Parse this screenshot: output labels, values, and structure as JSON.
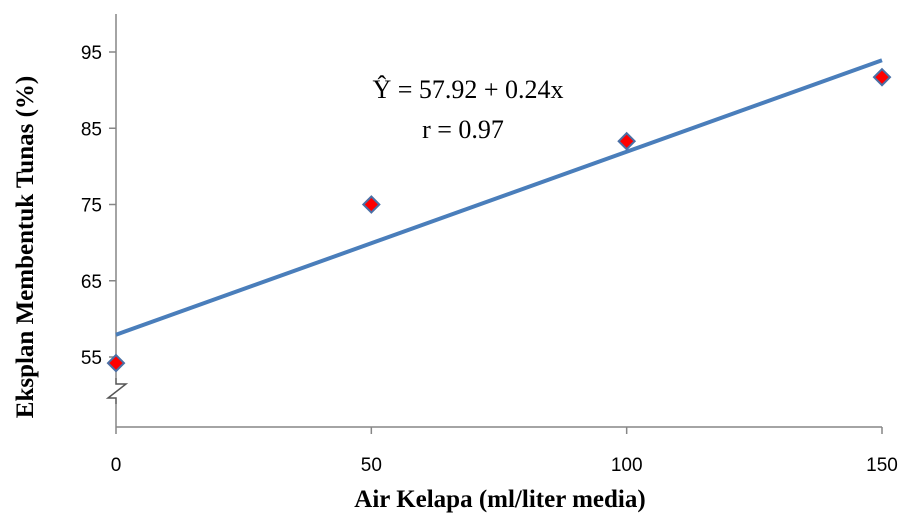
{
  "chart_data": {
    "type": "scatter",
    "xlabel": "Air Kelapa (ml/liter media)",
    "ylabel": "Eksplan Membentuk Tunas (%)",
    "x_ticks": [
      "0",
      "50",
      "100",
      "150"
    ],
    "y_ticks": [
      "55",
      "65",
      "75",
      "85",
      "95"
    ],
    "xlim": [
      0,
      150
    ],
    "ylim": [
      55,
      95
    ],
    "axis_break": true,
    "grid": false,
    "points": [
      {
        "x": 0,
        "y": 54.2
      },
      {
        "x": 50,
        "y": 75.0
      },
      {
        "x": 100,
        "y": 83.3
      },
      {
        "x": 150,
        "y": 91.7
      }
    ],
    "regression": {
      "intercept": 57.92,
      "slope": 0.24,
      "x_range": [
        0,
        150
      ]
    },
    "equation_text": "Ŷ = 57.92 + 0.24x",
    "r_text": "r = 0.97",
    "colors": {
      "line": "#4a7ebb",
      "marker_fill": "#ff0000",
      "marker_stroke": "#4a6fa5",
      "axis": "#868686"
    }
  }
}
